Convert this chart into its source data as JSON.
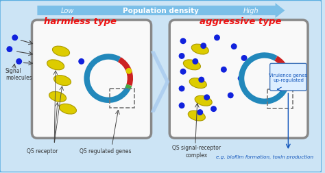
{
  "bg_color": "#cce4f5",
  "outer_border_color": "#5aade0",
  "arrow_bar_color": "#7bbfe8",
  "arrow_bar_text": "Population density",
  "arrow_bar_low": "Low",
  "arrow_bar_high": "High",
  "left_title": "harmless type",
  "right_title": "aggressive type",
  "title_color": "#ee1111",
  "cell_edge_color": "#888888",
  "cell_fill_color": "#f9f9f9",
  "chr_teal": "#2288bb",
  "chr_red": "#cc2222",
  "chr_green": "#44aa44",
  "chr_yellow": "#ddcc00",
  "signal_blue": "#1122dd",
  "receptor_yellow": "#ddcc00",
  "receptor_edge": "#aa9900",
  "label_dark": "#333333",
  "label_blue": "#1155bb",
  "between_arrow_color": "#aaccee",
  "virulence_box_bg": "#ddeeff",
  "virulence_box_edge": "#4477bb"
}
